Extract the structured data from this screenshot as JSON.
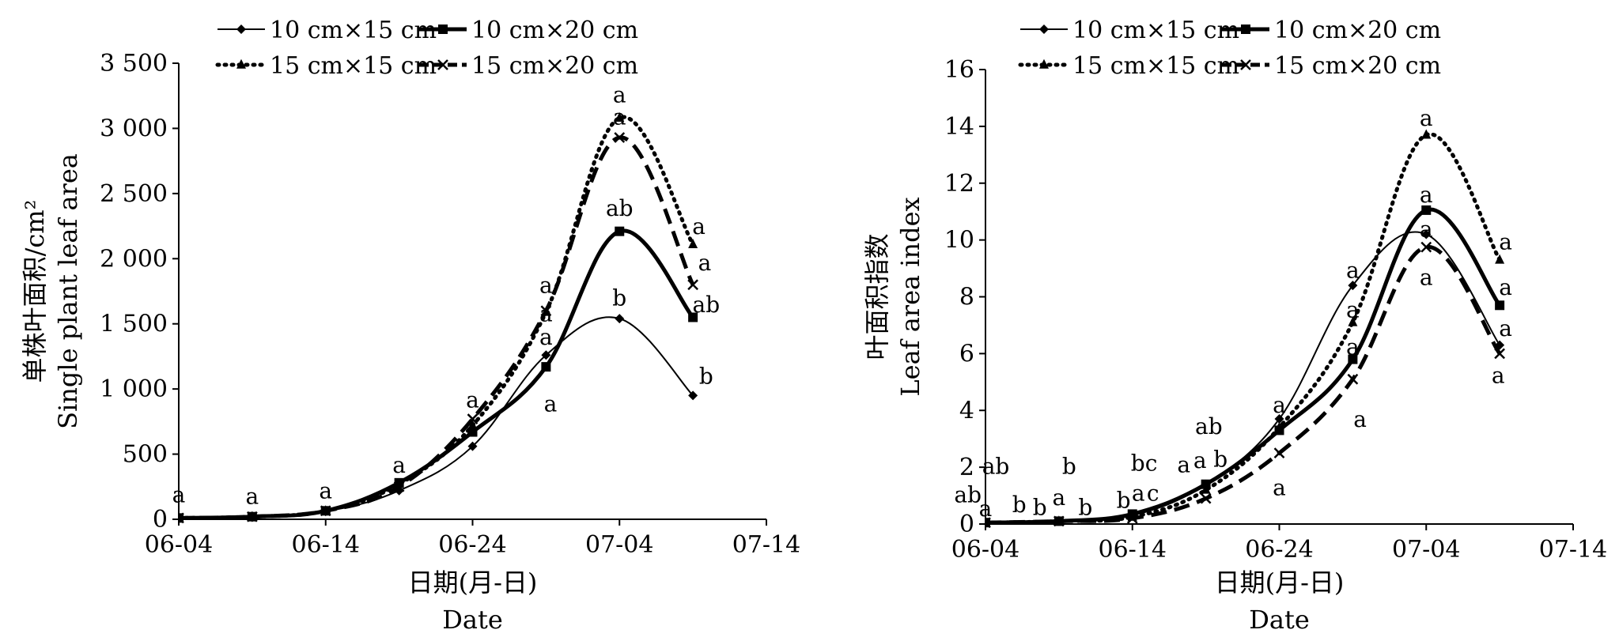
{
  "chart_data": [
    {
      "type": "line",
      "title": "",
      "xlabel": "日期(月-日)",
      "xlabel_en": "Date",
      "ylabel": "单株叶面积/cm²",
      "ylabel_en": "Single plant leaf area",
      "x_ticks": [
        "06-04",
        "06-14",
        "06-24",
        "07-04",
        "07-14"
      ],
      "y_ticks": [
        "0",
        "500",
        "1 000",
        "1 500",
        "2 000",
        "2 500",
        "3 000",
        "3 500"
      ],
      "ylim": [
        0,
        3500
      ],
      "x_days_range": [
        0,
        40
      ],
      "x": [
        "06-04",
        "06-09",
        "06-14",
        "06-19",
        "06-24",
        "06-29",
        "07-04",
        "07-09"
      ],
      "x_days": [
        0,
        5,
        10,
        15,
        20,
        25,
        30,
        35
      ],
      "legend_position": "top",
      "series": [
        {
          "name": "10 cm×15 cm",
          "style": "thin-solid",
          "marker": "diamond",
          "values": [
            10,
            15,
            60,
            220,
            560,
            1260,
            1540,
            950
          ]
        },
        {
          "name": "10 cm×20 cm",
          "style": "thick-solid",
          "marker": "square",
          "values": [
            10,
            20,
            65,
            280,
            670,
            1170,
            2210,
            1550
          ]
        },
        {
          "name": "15 cm×15 cm",
          "style": "dotted",
          "marker": "triangle",
          "values": [
            10,
            20,
            65,
            270,
            720,
            1590,
            3080,
            2110
          ]
        },
        {
          "name": "15 cm×20 cm",
          "style": "dashed",
          "marker": "cross",
          "values": [
            10,
            20,
            65,
            250,
            770,
            1600,
            2930,
            1800
          ]
        }
      ],
      "annotations": [
        {
          "text": "a",
          "x_days": 0,
          "y": 190
        },
        {
          "text": "a",
          "x_days": 5,
          "y": 180
        },
        {
          "text": "a",
          "x_days": 10,
          "y": 220
        },
        {
          "text": "a",
          "x_days": 15,
          "y": 420
        },
        {
          "text": "a",
          "x_days": 20,
          "y": 920
        },
        {
          "text": "a",
          "x_days": 25,
          "y": 1800
        },
        {
          "text": "a",
          "x_days": 25,
          "y": 1580
        },
        {
          "text": "a",
          "x_days": 25,
          "y": 1400
        },
        {
          "text": "a",
          "x_days": 25.3,
          "y": 890
        },
        {
          "text": "a",
          "x_days": 30,
          "y": 3260
        },
        {
          "text": "a",
          "x_days": 30,
          "y": 3090
        },
        {
          "text": "ab",
          "x_days": 30,
          "y": 2390
        },
        {
          "text": "b",
          "x_days": 30,
          "y": 1700
        },
        {
          "text": "a",
          "x_days": 35.4,
          "y": 2250
        },
        {
          "text": "a",
          "x_days": 35.8,
          "y": 1970
        },
        {
          "text": "ab",
          "x_days": 35.9,
          "y": 1650
        },
        {
          "text": "b",
          "x_days": 35.9,
          "y": 1100
        }
      ]
    },
    {
      "type": "line",
      "title": "",
      "xlabel": "日期(月-日)",
      "xlabel_en": "Date",
      "ylabel": "叶面积指数",
      "ylabel_en": "Leaf area index",
      "x_ticks": [
        "06-04",
        "06-14",
        "06-24",
        "07-04",
        "07-14"
      ],
      "y_ticks": [
        "0",
        "2",
        "4",
        "6",
        "8",
        "10",
        "12",
        "14",
        "16"
      ],
      "ylim": [
        0,
        16
      ],
      "x_days_range": [
        0,
        40
      ],
      "x": [
        "06-04",
        "06-09",
        "06-14",
        "06-19",
        "06-24",
        "06-29",
        "07-04",
        "07-09"
      ],
      "x_days": [
        0,
        5,
        10,
        15,
        20,
        25,
        30,
        35
      ],
      "legend_position": "top",
      "series": [
        {
          "name": "10 cm×15 cm",
          "style": "thin-solid",
          "marker": "diamond",
          "values": [
            0.05,
            0.1,
            0.3,
            1.4,
            3.7,
            8.4,
            10.2,
            6.3
          ]
        },
        {
          "name": "10 cm×20 cm",
          "style": "thick-solid",
          "marker": "square",
          "values": [
            0.05,
            0.1,
            0.35,
            1.4,
            3.3,
            5.8,
            11.05,
            7.7
          ]
        },
        {
          "name": "15 cm×15 cm",
          "style": "dotted",
          "marker": "triangle",
          "values": [
            0.05,
            0.1,
            0.25,
            1.2,
            3.4,
            7.1,
            13.7,
            9.3
          ]
        },
        {
          "name": "15 cm×20 cm",
          "style": "dashed",
          "marker": "cross",
          "values": [
            0.05,
            0.1,
            0.2,
            0.9,
            2.5,
            5.1,
            9.75,
            6.0
          ]
        }
      ],
      "annotations": [
        {
          "text": "ab",
          "x_days": 0.7,
          "y": 2.05
        },
        {
          "text": "ab",
          "x_days": -1.2,
          "y": 1.05
        },
        {
          "text": "b",
          "x_days": 2.3,
          "y": 0.7
        },
        {
          "text": "a",
          "x_days": 0,
          "y": 0.55
        },
        {
          "text": "b",
          "x_days": 5.7,
          "y": 2.05
        },
        {
          "text": "a",
          "x_days": 5,
          "y": 0.95
        },
        {
          "text": "b",
          "x_days": 3.7,
          "y": 0.6
        },
        {
          "text": "b",
          "x_days": 6.8,
          "y": 0.6
        },
        {
          "text": "bc",
          "x_days": 10.8,
          "y": 2.15
        },
        {
          "text": "a",
          "x_days": 10.4,
          "y": 1.1
        },
        {
          "text": "c",
          "x_days": 11.4,
          "y": 1.1
        },
        {
          "text": "b",
          "x_days": 9.4,
          "y": 0.85
        },
        {
          "text": "ab",
          "x_days": 15.2,
          "y": 3.45
        },
        {
          "text": "a",
          "x_days": 13.5,
          "y": 2.1
        },
        {
          "text": "a",
          "x_days": 14.6,
          "y": 2.25
        },
        {
          "text": "b",
          "x_days": 16.0,
          "y": 2.3
        },
        {
          "text": "a",
          "x_days": 20,
          "y": 4.2
        },
        {
          "text": "a",
          "x_days": 20,
          "y": 1.3
        },
        {
          "text": "a",
          "x_days": 25,
          "y": 8.95
        },
        {
          "text": "a",
          "x_days": 25,
          "y": 7.55
        },
        {
          "text": "a",
          "x_days": 25,
          "y": 6.25
        },
        {
          "text": "a",
          "x_days": 25.5,
          "y": 3.7
        },
        {
          "text": "a",
          "x_days": 30,
          "y": 14.3
        },
        {
          "text": "a",
          "x_days": 30,
          "y": 11.6
        },
        {
          "text": "a",
          "x_days": 30,
          "y": 10.4
        },
        {
          "text": "a",
          "x_days": 30,
          "y": 8.7
        },
        {
          "text": "a",
          "x_days": 35.4,
          "y": 9.95
        },
        {
          "text": "a",
          "x_days": 35.4,
          "y": 8.35
        },
        {
          "text": "a",
          "x_days": 35.4,
          "y": 6.9
        },
        {
          "text": "a",
          "x_days": 34.9,
          "y": 5.25
        }
      ]
    }
  ]
}
